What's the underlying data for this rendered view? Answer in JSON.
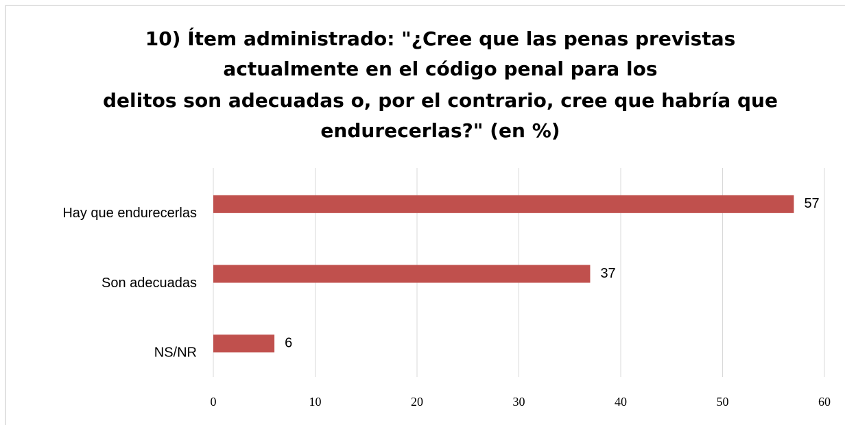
{
  "chart_data": {
    "type": "bar",
    "orientation": "horizontal",
    "title": [
      "10) Ítem administrado: \"¿Cree que las penas previstas",
      "actualmente en el código penal para los",
      "delitos son adecuadas o, por el contrario, cree que habría que",
      "endurecerlas?\" (en %)"
    ],
    "categories": [
      "Hay que endurecerlas",
      "Son adecuadas",
      "NS/NR"
    ],
    "values": [
      57,
      37,
      6
    ],
    "color": "#c0504d",
    "xlim": [
      0,
      60
    ],
    "xticks": [
      0,
      10,
      20,
      30,
      40,
      50,
      60
    ],
    "grid": true
  }
}
